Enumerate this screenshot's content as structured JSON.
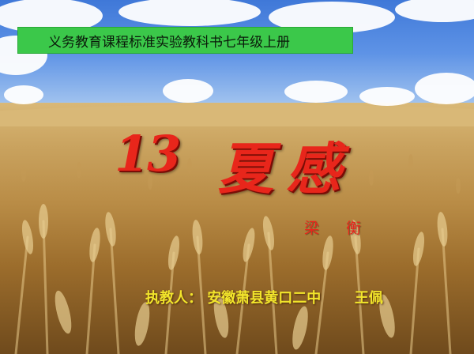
{
  "banner": {
    "text": "义务教育课程标准实验教科书七年级上册",
    "color": "#3bc84a"
  },
  "title": {
    "number": "13",
    "char1": "夏",
    "char2": "感",
    "color": "#e8261b"
  },
  "author": {
    "name": "梁 衡"
  },
  "teacher": {
    "prefix": "执教人：",
    "school": "安徽萧县黄口二中",
    "name": "王佩",
    "color": "#f2e52b"
  }
}
